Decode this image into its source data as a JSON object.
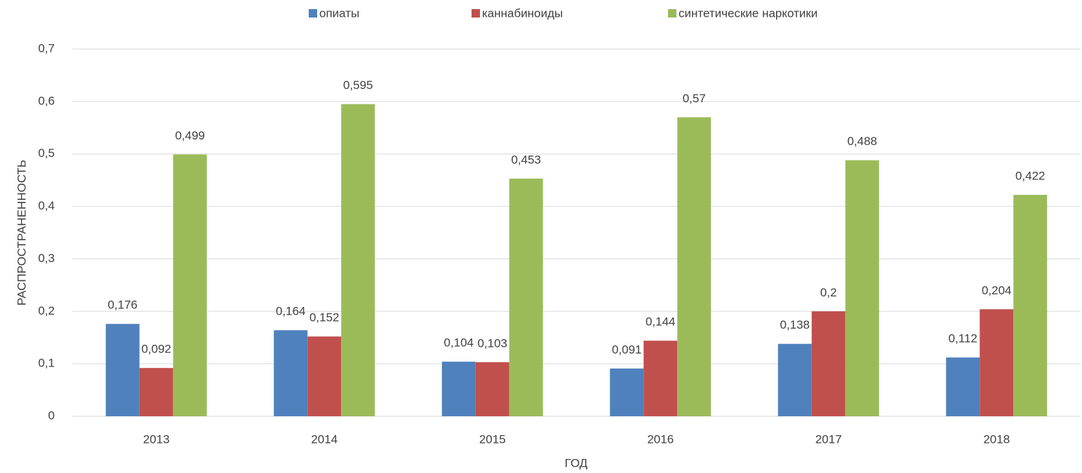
{
  "chart_data": {
    "type": "bar",
    "x_label": "ГОД",
    "y_label": "РАСПРОСТРАНЕННОСТЬ",
    "categories": [
      "2013",
      "2014",
      "2015",
      "2016",
      "2017",
      "2018"
    ],
    "series": [
      {
        "name": "опиаты",
        "color": "#4f81bd",
        "values": [
          0.176,
          0.164,
          0.104,
          0.091,
          0.138,
          0.112
        ],
        "value_labels": [
          "0,176",
          "0,164",
          "0,104",
          "0,091",
          "0,138",
          "0,112"
        ]
      },
      {
        "name": "каннабиноиды",
        "color": "#c0504d",
        "values": [
          0.092,
          0.152,
          0.103,
          0.144,
          0.2,
          0.204
        ],
        "value_labels": [
          "0,092",
          "0,152",
          "0,103",
          "0,144",
          "0,2",
          "0,204"
        ]
      },
      {
        "name": "синтетические наркотики",
        "color": "#9bbb59",
        "values": [
          0.499,
          0.595,
          0.453,
          0.57,
          0.488,
          0.422
        ],
        "value_labels": [
          "0,499",
          "0,595",
          "0,453",
          "0,57",
          "0,488",
          "0,422"
        ]
      }
    ],
    "ylim": [
      0,
      0.7
    ],
    "yticks": [
      0,
      {
        "value": 0.1,
        "label": "0,1"
      },
      {
        "value": 0.2,
        "label": "0,2"
      },
      {
        "value": 0.3,
        "label": "0,3"
      },
      {
        "value": 0.4,
        "label": "0,4"
      },
      {
        "value": 0.5,
        "label": "0,5"
      },
      {
        "value": 0.6,
        "label": "0,6"
      },
      {
        "value": 0.7,
        "label": "0,7"
      }
    ],
    "grid": true,
    "legend": "top"
  }
}
